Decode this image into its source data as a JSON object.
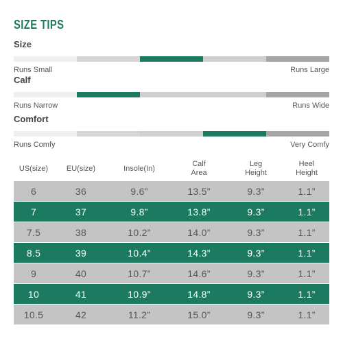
{
  "title": "SIZE TIPS",
  "metrics": [
    {
      "label": "Size",
      "low": "Runs Small",
      "high": "Runs Large",
      "active_index": 2
    },
    {
      "label": "Calf",
      "low": "Runs Narrow",
      "high": "Runs Wide",
      "active_index": 1
    },
    {
      "label": "Comfort",
      "low": "Runs Comfy",
      "high": "Very Comfy",
      "active_index": 3
    }
  ],
  "scale_colors": [
    "#efefef",
    "#d6d6d6",
    "#1b7a5f",
    "#cfcfcf",
    "#a6a6a6"
  ],
  "accent_color": "#1b7a5f",
  "table": {
    "headers": [
      "US(size)",
      "EU(size)",
      "Insole(In)",
      "Calf\nArea",
      "Leg\nHeight",
      "Heel\nHeight"
    ],
    "rows": [
      [
        "6",
        "36",
        "9.6”",
        "13.5”",
        "9.3”",
        "1.1”"
      ],
      [
        "7",
        "37",
        "9.8”",
        "13.8”",
        "9.3”",
        "1.1”"
      ],
      [
        "7.5",
        "38",
        "10.2”",
        "14.0”",
        "9.3”",
        "1.1”"
      ],
      [
        "8.5",
        "39",
        "10.4”",
        "14.3”",
        "9.3”",
        "1.1”"
      ],
      [
        "9",
        "40",
        "10.7”",
        "14.6”",
        "9.3”",
        "1.1”"
      ],
      [
        "10",
        "41",
        "10.9”",
        "14.8”",
        "9.3”",
        "1.1”"
      ],
      [
        "10.5",
        "42",
        "11.2”",
        "15.0”",
        "9.3”",
        "1.1”"
      ]
    ]
  }
}
